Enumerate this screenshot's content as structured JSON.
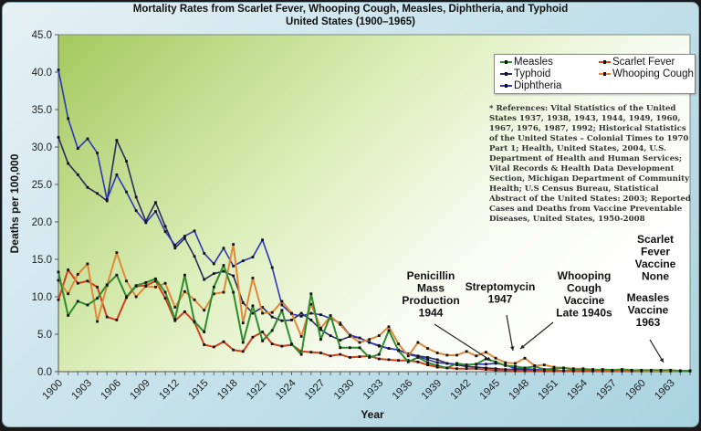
{
  "chart_data": {
    "type": "line",
    "title": "Mortality Rates from Scarlet Fever, Whooping Cough, Measles, Diphtheria, and Typhoid",
    "subtitle": "United States (1900–1965)",
    "xlabel": "Year",
    "ylabel": "Deaths per 100,000",
    "xlim": [
      1900,
      1965
    ],
    "ylim": [
      0,
      45
    ],
    "yticks": [
      "0.0",
      "5.0",
      "10.0",
      "15.0",
      "20.0",
      "25.0",
      "30.0",
      "35.0",
      "40.0",
      "45.0"
    ],
    "xticks": [
      "1900",
      "1903",
      "1906",
      "1909",
      "1912",
      "1915",
      "1918",
      "1921",
      "1924",
      "1927",
      "1930",
      "1933",
      "1936",
      "1939",
      "1942",
      "1945",
      "1948",
      "1951",
      "1954",
      "1957",
      "1960",
      "1963"
    ],
    "grid": false,
    "legend_position": "top-right",
    "x": [
      1900,
      1901,
      1902,
      1903,
      1904,
      1905,
      1906,
      1907,
      1908,
      1909,
      1910,
      1911,
      1912,
      1913,
      1914,
      1915,
      1916,
      1917,
      1918,
      1919,
      1920,
      1921,
      1922,
      1923,
      1924,
      1925,
      1926,
      1927,
      1928,
      1929,
      1930,
      1931,
      1932,
      1933,
      1934,
      1935,
      1936,
      1937,
      1938,
      1939,
      1940,
      1941,
      1942,
      1943,
      1944,
      1945,
      1946,
      1947,
      1948,
      1949,
      1950,
      1951,
      1952,
      1953,
      1954,
      1955,
      1956,
      1957,
      1958,
      1959,
      1960,
      1961,
      1962,
      1963,
      1964,
      1965
    ],
    "series": [
      {
        "name": "Measles",
        "color": "#2e8b2e",
        "values": [
          13.3,
          7.5,
          9.4,
          8.9,
          9.8,
          11.6,
          12.9,
          10.0,
          11.5,
          11.9,
          12.4,
          10.6,
          7.0,
          12.9,
          6.7,
          5.3,
          11.3,
          14.2,
          10.6,
          3.9,
          8.8,
          4.1,
          5.5,
          8.2,
          3.7,
          2.3,
          10.4,
          4.3,
          7.5,
          3.2,
          3.2,
          3.2,
          1.9,
          2.3,
          5.5,
          2.8,
          1.3,
          1.9,
          1.2,
          0.8,
          0.5,
          1.1,
          0.9,
          1.0,
          1.7,
          1.3,
          0.8,
          0.7,
          0.5,
          0.7,
          0.3,
          0.4,
          0.5,
          0.3,
          0.3,
          0.2,
          0.3,
          0.2,
          0.3,
          0.2,
          0.2,
          0.2,
          0.2,
          0.2,
          0.1,
          0.1
        ]
      },
      {
        "name": "Scarlet Fever",
        "color": "#d2401e",
        "values": [
          9.6,
          13.6,
          11.8,
          12.1,
          11.3,
          7.3,
          6.9,
          9.9,
          11.4,
          11.5,
          12.1,
          9.8,
          6.8,
          8.0,
          6.6,
          3.6,
          3.3,
          4.0,
          2.9,
          2.7,
          4.6,
          5.3,
          3.7,
          3.4,
          3.6,
          2.7,
          2.6,
          2.5,
          2.1,
          2.3,
          1.9,
          2.0,
          2.1,
          1.7,
          1.6,
          1.5,
          1.5,
          1.3,
          0.9,
          0.6,
          0.5,
          0.4,
          0.4,
          0.4,
          0.3,
          0.2,
          0.2,
          0.1,
          0.1,
          0.1,
          0.1,
          0.1,
          0.1,
          0.1,
          0.1,
          0.1,
          0.1,
          0.1,
          0.1,
          0.1,
          0.1,
          0.1,
          0.1,
          0.1,
          0.1,
          0.1
        ]
      },
      {
        "name": "Typhoid",
        "color": "#2b2b5e",
        "values": [
          31.3,
          27.8,
          26.3,
          24.6,
          23.8,
          22.8,
          30.9,
          28.1,
          23.3,
          20.1,
          22.6,
          19.4,
          16.5,
          17.8,
          15.4,
          12.3,
          13.1,
          13.4,
          12.8,
          9.2,
          7.8,
          8.6,
          7.3,
          6.8,
          6.9,
          7.8,
          6.9,
          5.6,
          4.8,
          4.2,
          4.7,
          4.5,
          3.9,
          3.4,
          3.1,
          2.9,
          2.4,
          2.1,
          1.9,
          1.6,
          1.1,
          0.9,
          0.7,
          0.6,
          0.5,
          0.4,
          0.3,
          0.3,
          0.2,
          0.2,
          0.1,
          0.1,
          0.1,
          0.1,
          0.1,
          0.1,
          0.1,
          0.1,
          0.1,
          0.1,
          0.1,
          0.1,
          0.1,
          0.1,
          0.1,
          0.1
        ]
      },
      {
        "name": "Whooping Cough",
        "color": "#e0883a",
        "values": [
          12.2,
          10.4,
          13.0,
          14.4,
          6.7,
          11.5,
          15.9,
          12.1,
          10.0,
          11.4,
          11.3,
          11.8,
          8.6,
          10.7,
          9.6,
          8.2,
          10.4,
          10.6,
          17.0,
          6.5,
          12.5,
          7.8,
          7.9,
          9.4,
          7.8,
          4.7,
          9.0,
          5.8,
          7.4,
          6.3,
          4.8,
          3.9,
          4.3,
          4.8,
          6.0,
          3.7,
          2.1,
          3.9,
          3.1,
          2.5,
          2.2,
          2.2,
          2.7,
          2.1,
          2.6,
          1.8,
          1.2,
          1.1,
          1.8,
          0.8,
          0.9,
          0.6,
          0.5,
          0.4,
          0.4,
          0.3,
          0.2,
          0.2,
          0.2,
          0.2,
          0.1,
          0.1,
          0.1,
          0.1,
          0.1,
          0.1
        ]
      },
      {
        "name": "Diphtheria",
        "color": "#2f36b8",
        "values": [
          40.3,
          33.8,
          29.8,
          31.1,
          29.2,
          23.0,
          26.3,
          24.0,
          21.5,
          19.9,
          21.4,
          18.7,
          16.9,
          18.1,
          18.8,
          15.8,
          14.4,
          16.5,
          14.1,
          14.8,
          15.3,
          17.6,
          13.9,
          8.9,
          7.7,
          7.4,
          7.8,
          7.6,
          7.1,
          6.5,
          4.9,
          4.5,
          3.9,
          3.5,
          3.1,
          2.9,
          2.3,
          2.0,
          1.6,
          1.2,
          1.1,
          1.0,
          0.9,
          1.0,
          1.0,
          1.1,
          0.9,
          0.4,
          0.4,
          0.3,
          0.2,
          0.2,
          0.1,
          0.1,
          0.1,
          0.1,
          0.1,
          0.1,
          0.1,
          0.1,
          0.1,
          0.1,
          0.1,
          0.1,
          0.1,
          0.1
        ]
      }
    ],
    "annotations": [
      {
        "text": [
          "Penicillin",
          "Mass",
          "Production",
          "1944"
        ],
        "points_to_year": 1945
      },
      {
        "text": [
          "Streptomycin",
          "1947"
        ],
        "points_to_year": 1947
      },
      {
        "text": [
          "Whooping",
          "Cough",
          "Vaccine",
          "Late 1940s"
        ],
        "points_to_year": 1948
      },
      {
        "text": [
          "Scarlet",
          "Fever",
          "Vaccine",
          "None"
        ],
        "points_to_year": null
      },
      {
        "text": [
          "Measles",
          "Vaccine",
          "1963"
        ],
        "points_to_year": 1963
      }
    ],
    "references": "* References: Vital Statistics of the United States 1937, 1938, 1943, 1944, 1949, 1960, 1967, 1976, 1987, 1992; Historical Statistics of the United States – Colonial Times to 1970 Part 1; Health, United States, 2004, U.S. Department of Health and Human Services; Vital Records & Health Data Development Section, Michigan Department of Community Health; U.S Census Bureau, Statistical Abstract of the United States: 2003; Reported Cases and Deaths from Vaccine Preventable Diseases, United States, 1950-2008"
  },
  "legend": {
    "items": [
      {
        "label": "Measles",
        "color": "#2e8b2e"
      },
      {
        "label": "Scarlet Fever",
        "color": "#d2401e"
      },
      {
        "label": "Typhoid",
        "color": "#2b2b5e"
      },
      {
        "label": "Whooping Cough",
        "color": "#e0883a"
      },
      {
        "label": "Diphtheria",
        "color": "#2f36b8"
      }
    ]
  }
}
